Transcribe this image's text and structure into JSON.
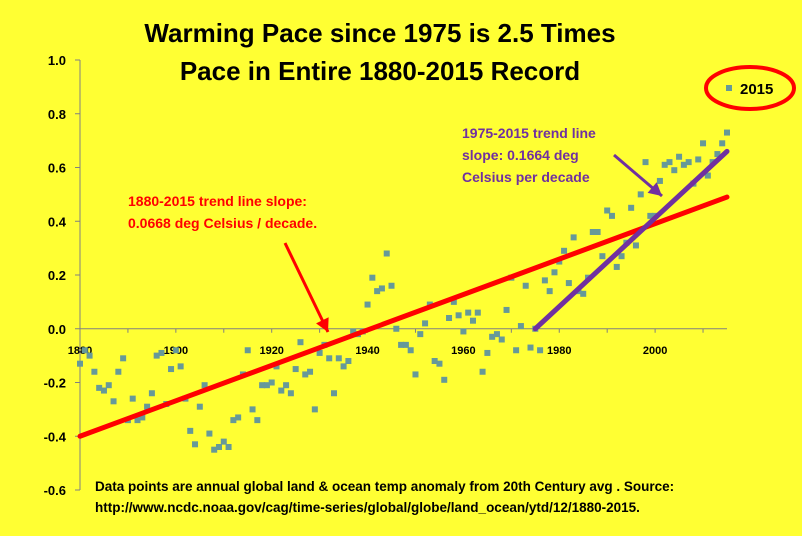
{
  "chart_data": {
    "type": "scatter",
    "title_line1": "Warming Pace since 1975 is 2.5 Times",
    "title_line2": "Pace in Entire 1880-2015 Record",
    "xlim": [
      1880,
      2015
    ],
    "ylim": [
      -0.6,
      1.0
    ],
    "x_ticks": [
      1880,
      1900,
      1920,
      1940,
      1960,
      1980,
      2000
    ],
    "y_ticks": [
      "1.0",
      "0.8",
      "0.6",
      "0.4",
      "0.2",
      "0.0",
      "-0.2",
      "-0.4",
      "-0.6"
    ],
    "grid": false,
    "legend": {
      "label": "2015",
      "position": "top-right"
    },
    "series": [
      {
        "x": [
          1880,
          1881,
          1882,
          1883,
          1884,
          1885,
          1886,
          1887,
          1888,
          1889,
          1890,
          1891,
          1892,
          1893,
          1894,
          1895,
          1896,
          1897,
          1898,
          1899,
          1900,
          1901,
          1902,
          1903,
          1904,
          1905,
          1906,
          1907,
          1908,
          1909,
          1910,
          1911,
          1912,
          1913,
          1914,
          1915,
          1916,
          1917,
          1918,
          1919,
          1920,
          1921,
          1922,
          1923,
          1924,
          1925,
          1926,
          1927,
          1928,
          1929,
          1930,
          1931,
          1932,
          1933,
          1934,
          1935,
          1936,
          1937,
          1938,
          1939,
          1940,
          1941,
          1942,
          1943,
          1944,
          1945,
          1946,
          1947,
          1948,
          1949,
          1950,
          1951,
          1952,
          1953,
          1954,
          1955,
          1956,
          1957,
          1958,
          1959,
          1960,
          1961,
          1962,
          1963,
          1964,
          1965,
          1966,
          1967,
          1968,
          1969,
          1970,
          1971,
          1972,
          1973,
          1974,
          1975,
          1976,
          1977,
          1978,
          1979,
          1980,
          1981,
          1982,
          1983,
          1984,
          1985,
          1986,
          1987,
          1988,
          1989,
          1990,
          1991,
          1992,
          1993,
          1994,
          1995,
          1996,
          1997,
          1998,
          1999,
          2000,
          2001,
          2002,
          2003,
          2004,
          2005,
          2006,
          2007,
          2008,
          2009,
          2010,
          2011,
          2012,
          2013,
          2014,
          2015
        ],
        "y": [
          -0.13,
          -0.08,
          -0.1,
          -0.16,
          -0.22,
          -0.23,
          -0.21,
          -0.27,
          -0.16,
          -0.11,
          -0.34,
          -0.26,
          -0.34,
          -0.33,
          -0.29,
          -0.24,
          -0.1,
          -0.09,
          -0.28,
          -0.15,
          -0.08,
          -0.14,
          -0.26,
          -0.38,
          -0.43,
          -0.29,
          -0.21,
          -0.39,
          -0.45,
          -0.44,
          -0.42,
          -0.44,
          -0.34,
          -0.33,
          -0.17,
          -0.08,
          -0.3,
          -0.34,
          -0.21,
          -0.21,
          -0.2,
          -0.14,
          -0.23,
          -0.21,
          -0.24,
          -0.15,
          -0.05,
          -0.17,
          -0.16,
          -0.3,
          -0.09,
          -0.06,
          -0.11,
          -0.24,
          -0.11,
          -0.14,
          -0.12,
          -0.01,
          -0.02,
          -0.01,
          0.09,
          0.19,
          0.14,
          0.15,
          0.28,
          0.16,
          0.0,
          -0.06,
          -0.06,
          -0.08,
          -0.17,
          -0.02,
          0.02,
          0.09,
          -0.12,
          -0.13,
          -0.19,
          0.04,
          0.1,
          0.05,
          -0.01,
          0.06,
          0.03,
          0.06,
          -0.16,
          -0.09,
          -0.03,
          -0.02,
          -0.04,
          0.07,
          0.19,
          -0.08,
          0.01,
          0.16,
          -0.07,
          0.0,
          -0.08,
          0.18,
          0.14,
          0.21,
          0.25,
          0.29,
          0.17,
          0.34,
          0.14,
          0.13,
          0.19,
          0.36,
          0.36,
          0.27,
          0.44,
          0.42,
          0.23,
          0.27,
          0.32,
          0.45,
          0.31,
          0.5,
          0.62,
          0.42,
          0.42,
          0.55,
          0.61,
          0.62,
          0.59,
          0.64,
          0.61,
          0.62,
          0.54,
          0.63,
          0.69,
          0.57,
          0.62,
          0.65,
          0.69,
          0.73
        ]
      }
    ],
    "trend_lines": [
      {
        "label": "1880-2015 trend line slope:",
        "label2": "0.0668 deg Celsius / decade.",
        "color": "#ff0000",
        "x": [
          1880,
          2015
        ],
        "y": [
          -0.4,
          0.49
        ]
      },
      {
        "label": "1975-2015 trend line",
        "label2": "slope: 0.1664 deg",
        "label3": "Celsius per decade",
        "color": "#7030a0",
        "x": [
          1975,
          2015
        ],
        "y": [
          0.0,
          0.66
        ]
      }
    ],
    "source_line1": "Data points are annual global land & ocean temp anomaly from 20th Century avg . Source:",
    "source_line2": "http://www.ncdc.noaa.gov/cag/time-series/global/globe/land_ocean/ytd/12/1880-2015.",
    "point_color": "#669999",
    "highlight_color": "#ff0000"
  }
}
